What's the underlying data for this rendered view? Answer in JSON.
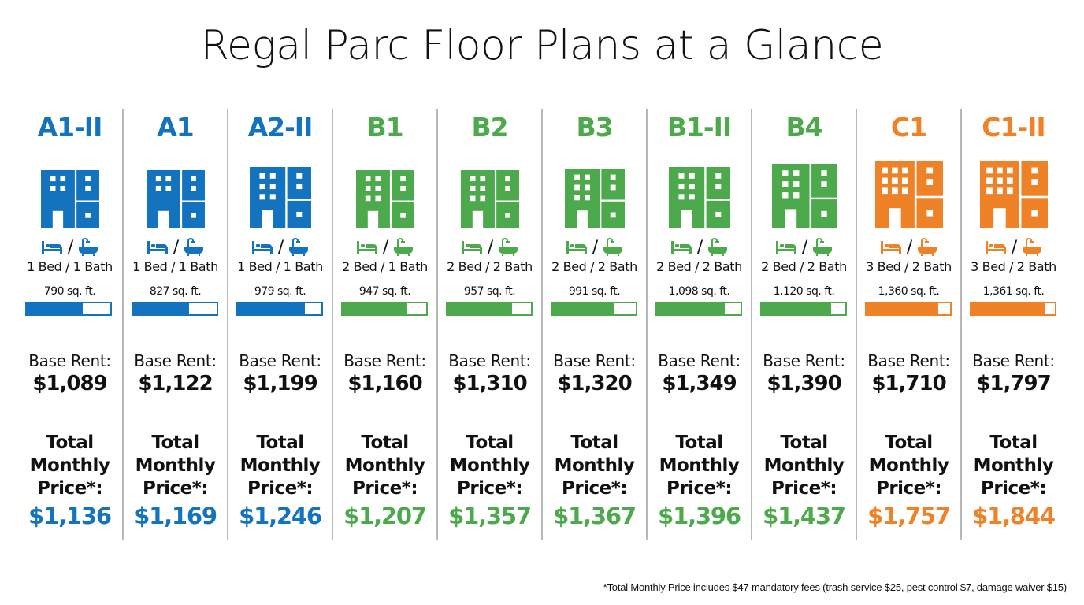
{
  "title": "Regal Parc Floor Plans at a Glance",
  "colors": {
    "blue": "#1473be",
    "green": "#4caa4c",
    "orange": "#ef8127"
  },
  "labels": {
    "base_rent": "Base Rent:",
    "total_line1": "Total",
    "total_line2": "Monthly",
    "total_line3": "Price*:",
    "slash": "/"
  },
  "plans": [
    {
      "name": "A1-II",
      "tier": "blue",
      "bedbath": "1 Bed / 1 Bath",
      "sqft": "790 sq. ft.",
      "bar_pct": 67,
      "base_rent": "$1,089",
      "total": "$1,136",
      "icon_cols": 2,
      "icon_rows": 2,
      "icon_size": 74
    },
    {
      "name": "A1",
      "tier": "blue",
      "bedbath": "1 Bed / 1 Bath",
      "sqft": "827 sq. ft.",
      "bar_pct": 67,
      "base_rent": "$1,122",
      "total": "$1,169",
      "icon_cols": 2,
      "icon_rows": 2,
      "icon_size": 74
    },
    {
      "name": "A2-II",
      "tier": "blue",
      "bedbath": "1 Bed / 1 Bath",
      "sqft": "979 sq. ft.",
      "bar_pct": 80,
      "base_rent": "$1,199",
      "total": "$1,246",
      "icon_cols": 2,
      "icon_rows": 3,
      "icon_size": 78
    },
    {
      "name": "B1",
      "tier": "green",
      "bedbath": "2 Bed / 1 Bath",
      "sqft": "947 sq. ft.",
      "bar_pct": 76,
      "base_rent": "$1,160",
      "total": "$1,207",
      "icon_cols": 2,
      "icon_rows": 3,
      "icon_size": 74
    },
    {
      "name": "B2",
      "tier": "green",
      "bedbath": "2 Bed / 2 Bath",
      "sqft": "957 sq. ft.",
      "bar_pct": 77,
      "base_rent": "$1,310",
      "total": "$1,357",
      "icon_cols": 2,
      "icon_rows": 3,
      "icon_size": 74
    },
    {
      "name": "B3",
      "tier": "green",
      "bedbath": "2 Bed / 2 Bath",
      "sqft": "991 sq. ft.",
      "bar_pct": 74,
      "base_rent": "$1,320",
      "total": "$1,367",
      "icon_cols": 2,
      "icon_rows": 3,
      "icon_size": 76
    },
    {
      "name": "B1-II",
      "tier": "green",
      "bedbath": "2 Bed / 2 Bath",
      "sqft": "1,098 sq. ft.",
      "bar_pct": 81,
      "base_rent": "$1,349",
      "total": "$1,396",
      "icon_cols": 2,
      "icon_rows": 3,
      "icon_size": 78
    },
    {
      "name": "B4",
      "tier": "green",
      "bedbath": "2 Bed / 2 Bath",
      "sqft": "1,120 sq. ft.",
      "bar_pct": 83,
      "base_rent": "$1,390",
      "total": "$1,437",
      "icon_cols": 2,
      "icon_rows": 3,
      "icon_size": 82
    },
    {
      "name": "C1",
      "tier": "orange",
      "bedbath": "3 Bed / 2 Bath",
      "sqft": "1,360 sq. ft.",
      "bar_pct": 86,
      "base_rent": "$1,710",
      "total": "$1,757",
      "icon_cols": 3,
      "icon_rows": 3,
      "icon_size": 86
    },
    {
      "name": "C1-II",
      "tier": "orange",
      "bedbath": "3 Bed / 2 Bath",
      "sqft": "1,361 sq. ft.",
      "bar_pct": 88,
      "base_rent": "$1,797",
      "total": "$1,844",
      "icon_cols": 3,
      "icon_rows": 3,
      "icon_size": 86
    }
  ],
  "footnote": "*Total Monthly Price includes $47 mandatory fees (trash service $25, pest control $7, damage waiver $15)"
}
